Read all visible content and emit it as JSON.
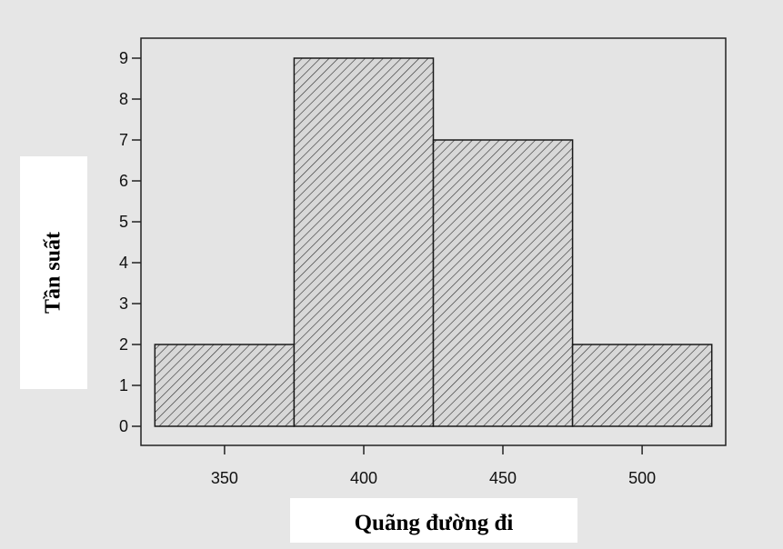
{
  "chart_data": {
    "type": "bar",
    "subtype": "histogram",
    "bins": [
      {
        "from": 325,
        "to": 375,
        "value": 2
      },
      {
        "from": 375,
        "to": 425,
        "value": 9
      },
      {
        "from": 425,
        "to": 475,
        "value": 7
      },
      {
        "from": 475,
        "to": 525,
        "value": 2
      }
    ],
    "categories": [
      "325-375",
      "375-425",
      "425-475",
      "475-525"
    ],
    "values": [
      2,
      9,
      7,
      2
    ],
    "xlabel": "Quãng đường đi",
    "ylabel": "Tần suất",
    "xticks": [
      "350",
      "400",
      "450",
      "500"
    ],
    "yticks": [
      "0",
      "1",
      "2",
      "3",
      "4",
      "5",
      "6",
      "7",
      "8",
      "9"
    ],
    "xlim": [
      320,
      530
    ],
    "ylim": [
      0,
      9.4
    ],
    "grid": false,
    "bar_fill": "hatched",
    "colors": {
      "bar_stroke": "#1a1a1a",
      "hatch": "#2a2a2a",
      "bar_fill": "#d8d8d8",
      "background": "#e6e6e6",
      "plot_background": "#e4e4e4"
    }
  }
}
